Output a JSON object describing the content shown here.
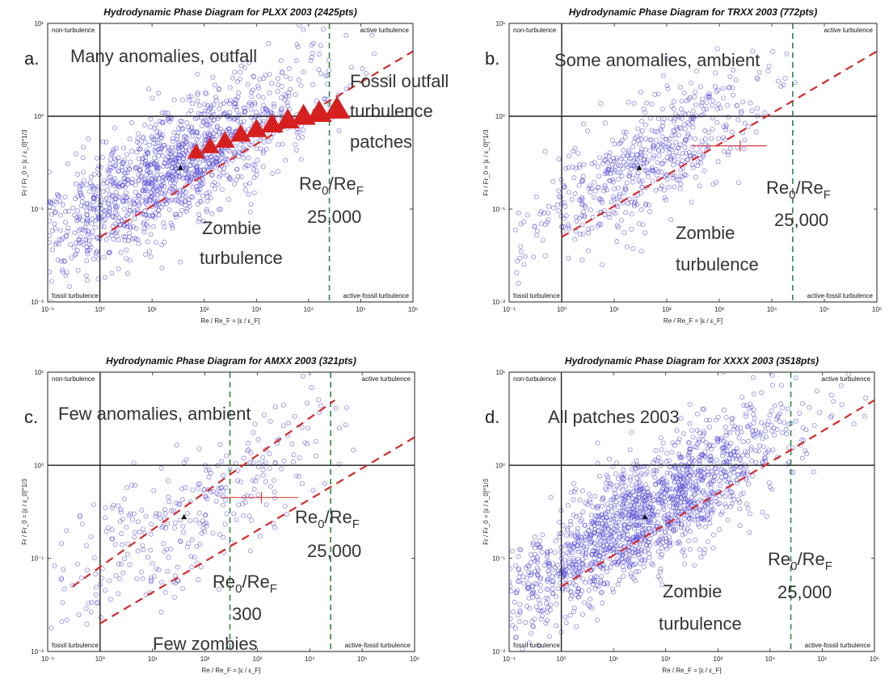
{
  "figure": {
    "xlabel": "Re / Re_F = [ε / ε_F]",
    "ylabel": "Fr / Fr_0 = [ε / ε_0]^1/3",
    "corner_labels": {
      "top_left": "non-turbulence",
      "top_right": "active turbulence",
      "bottom_left": "fossil turbulence",
      "bottom_right": "active-fossil turbulence"
    },
    "x_tick_labels": [
      "10⁻¹",
      "10⁰",
      "10¹",
      "10²",
      "10³",
      "10⁴",
      "10⁵",
      "10⁶"
    ],
    "y_tick_labels": [
      "10⁻²",
      "10⁻¹",
      "10⁰",
      "10¹"
    ],
    "marker_color": "#5a4fd6",
    "threshold_line_color": "#d42a2a",
    "ratio_line_color": "#2a8a3a",
    "triangle_color": "#d62020"
  },
  "chart_data": [
    {
      "type": "scatter",
      "panel_letter": "a.",
      "title": "Hydrodynamic Phase Diagram for PLXX 2003",
      "count_label": "(2425pts)",
      "xscale": "log",
      "yscale": "log",
      "xlim": [
        0.1,
        1000000
      ],
      "ylim": [
        0.01,
        10
      ],
      "vertical_lines": [
        {
          "x": 1,
          "style": "solid"
        },
        {
          "x": 25000,
          "style": "dashed green"
        }
      ],
      "horizontal_lines": [
        {
          "y": 1,
          "style": "solid"
        }
      ],
      "diagonal_lines": [
        {
          "from": [
            1,
            0.05
          ],
          "to": [
            1000000,
            5.0
          ],
          "style": "dashed red"
        }
      ],
      "marker_mean": [
        35,
        0.28
      ],
      "triangles": [
        [
          70,
          0.4
        ],
        [
          130,
          0.46
        ],
        [
          250,
          0.53
        ],
        [
          500,
          0.62
        ],
        [
          1000,
          0.7
        ],
        [
          2000,
          0.79
        ],
        [
          4000,
          0.88
        ],
        [
          8000,
          0.97
        ],
        [
          16000,
          1.05
        ],
        [
          35000,
          1.15
        ]
      ],
      "annotations": [
        {
          "text": "Many anomalies, outfall"
        },
        {
          "text": "Fossil outfall"
        },
        {
          "text": "turbulence"
        },
        {
          "text": "patches"
        },
        {
          "text": "Re",
          "sub1": "0",
          "mid": "/Re",
          "sub2": "F"
        },
        {
          "text": "25,000"
        },
        {
          "text": "Zombie"
        },
        {
          "text": "turbulence"
        }
      ]
    },
    {
      "type": "scatter",
      "panel_letter": "b.",
      "title": "Hydrodynamic Phase Diagram for TRXX 2003",
      "count_label": "(772pts)",
      "xscale": "log",
      "yscale": "log",
      "xlim": [
        0.1,
        1000000
      ],
      "ylim": [
        0.01,
        10
      ],
      "vertical_lines": [
        {
          "x": 1,
          "style": "solid"
        },
        {
          "x": 25000,
          "style": "dashed green"
        }
      ],
      "horizontal_lines": [
        {
          "y": 1,
          "style": "solid"
        }
      ],
      "diagonal_lines": [
        {
          "from": [
            1,
            0.05
          ],
          "to": [
            1000000,
            5.0
          ],
          "style": "dashed red"
        }
      ],
      "marker_mean": [
        30,
        0.28
      ],
      "error_bar": {
        "center": [
          2500,
          0.48
        ],
        "xrange": [
          300,
          8000
        ]
      },
      "annotations": [
        {
          "text": "Some anomalies, ambient"
        },
        {
          "text": "Re",
          "sub1": "0",
          "mid": "/Re",
          "sub2": "F"
        },
        {
          "text": "25,000"
        },
        {
          "text": "Zombie"
        },
        {
          "text": "turbulence"
        }
      ]
    },
    {
      "type": "scatter",
      "panel_letter": "c.",
      "title": "Hydrodynamic Phase Diagram for AMXX 2003",
      "count_label": "(321pts)",
      "xscale": "log",
      "yscale": "log",
      "xlim": [
        0.1,
        1000000
      ],
      "ylim": [
        0.01,
        10
      ],
      "vertical_lines": [
        {
          "x": 1,
          "style": "solid"
        },
        {
          "x": 300,
          "style": "dashed green"
        },
        {
          "x": 25000,
          "style": "dashed green"
        }
      ],
      "horizontal_lines": [
        {
          "y": 1,
          "style": "solid"
        }
      ],
      "diagonal_lines": [
        {
          "from": [
            0.3,
            0.05
          ],
          "to": [
            30000,
            5.0
          ],
          "style": "dashed red"
        },
        {
          "from": [
            1,
            0.02
          ],
          "to": [
            1000000,
            2.0
          ],
          "style": "dashed red"
        }
      ],
      "marker_mean": [
        40,
        0.28
      ],
      "error_bar": {
        "center": [
          1200,
          0.45
        ],
        "xrange": [
          200,
          6000
        ]
      },
      "annotations": [
        {
          "text": "Few anomalies, ambient"
        },
        {
          "text": "Re",
          "sub1": "0",
          "mid": "/Re",
          "sub2": "F"
        },
        {
          "text": "25,000"
        },
        {
          "text": "Re",
          "sub1": "0",
          "mid": "/Re",
          "sub2": "F"
        },
        {
          "text": "300"
        },
        {
          "text": "Few zombies"
        }
      ]
    },
    {
      "type": "scatter",
      "panel_letter": "d.",
      "title": "Hydrodynamic Phase Diagram for XXXX 2003",
      "count_label": "(3518pts)",
      "xscale": "log",
      "yscale": "log",
      "xlim": [
        0.1,
        1000000
      ],
      "ylim": [
        0.01,
        10
      ],
      "vertical_lines": [
        {
          "x": 1,
          "style": "solid"
        },
        {
          "x": 25000,
          "style": "dashed green"
        }
      ],
      "horizontal_lines": [
        {
          "y": 1,
          "style": "solid"
        }
      ],
      "diagonal_lines": [
        {
          "from": [
            1,
            0.05
          ],
          "to": [
            1000000,
            5.0
          ],
          "style": "dashed red"
        }
      ],
      "marker_mean": [
        40,
        0.28
      ],
      "annotations": [
        {
          "text": "All patches 2003"
        },
        {
          "text": "Re",
          "sub1": "0",
          "mid": "/Re",
          "sub2": "F"
        },
        {
          "text": "25,000"
        },
        {
          "text": "Zombie"
        },
        {
          "text": "turbulence"
        }
      ]
    }
  ]
}
